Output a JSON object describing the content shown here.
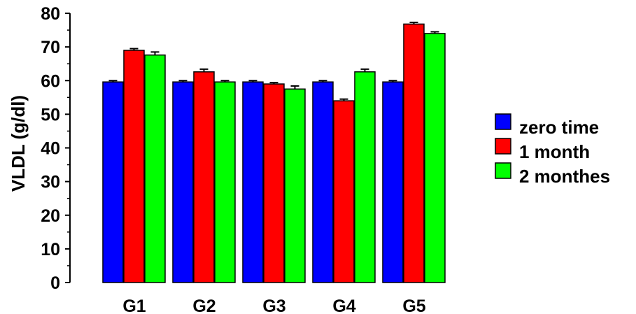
{
  "chart_data": {
    "type": "bar",
    "title": "",
    "xlabel": "",
    "ylabel": "VLDL (g/dl)",
    "ylim": [
      0,
      80
    ],
    "yticks": [
      0,
      10,
      20,
      30,
      40,
      50,
      60,
      70,
      80
    ],
    "grid": false,
    "legend_position": "right",
    "categories": [
      "G1",
      "G2",
      "G3",
      "G4",
      "G5"
    ],
    "series": [
      {
        "name": "zero time",
        "color": "#0000ff",
        "values": [
          59.6,
          59.6,
          59.6,
          59.6,
          59.6
        ],
        "errors": [
          0.4,
          0.4,
          0.4,
          0.4,
          0.4
        ]
      },
      {
        "name": "1 month",
        "color": "#ff0000",
        "values": [
          69.0,
          62.6,
          59.0,
          54.0,
          76.8
        ],
        "errors": [
          0.5,
          0.8,
          0.4,
          0.5,
          0.5
        ]
      },
      {
        "name": "2 monthes",
        "color": "#00ff00",
        "values": [
          67.6,
          59.6,
          57.5,
          62.6,
          74.0
        ],
        "errors": [
          0.9,
          0.4,
          0.9,
          0.8,
          0.5
        ]
      }
    ]
  }
}
